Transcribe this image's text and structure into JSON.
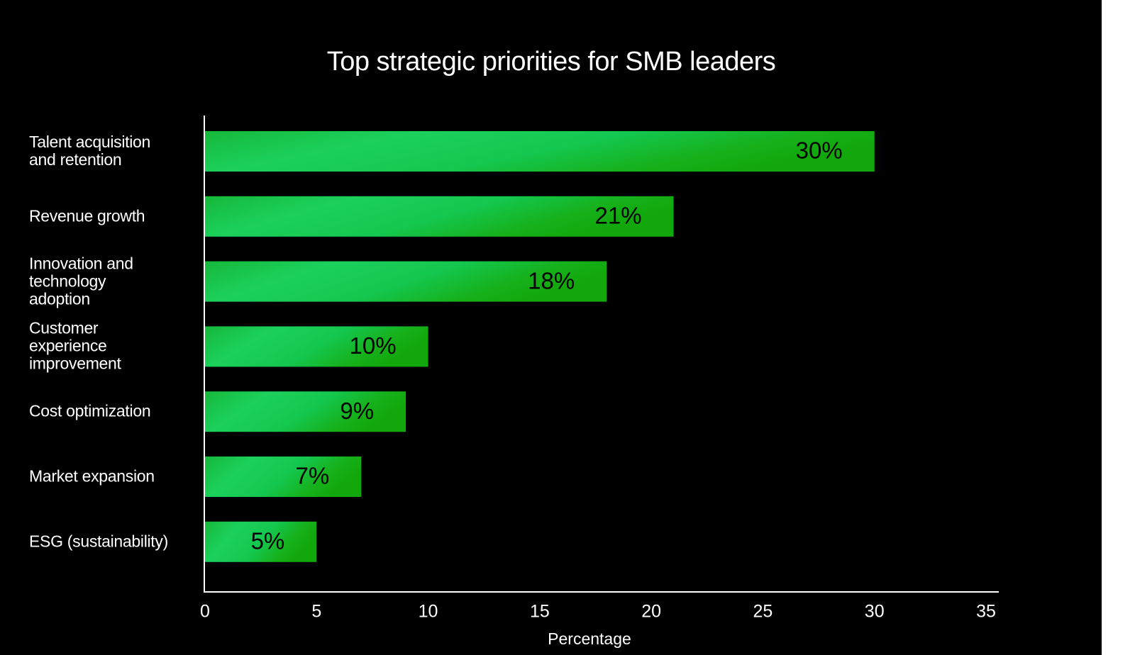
{
  "chart_data": {
    "type": "bar",
    "title": "Top strategic priorities for SMB leaders",
    "categories": [
      "Talent acquisition\nand retention",
      "Revenue growth",
      "Innovation and\ntechnology\nadoption",
      "Customer\nexperience\nimprovement",
      "Cost optimization",
      "Market expansion",
      "ESG (sustainability)"
    ],
    "values": [
      30,
      21,
      18,
      10,
      9,
      7,
      5
    ],
    "value_labels": [
      "30%",
      "21%",
      "18%",
      "10%",
      "9%",
      "7%",
      "5%"
    ],
    "color": "#19c95a",
    "xlabel": "Percentage",
    "xlim": [
      0,
      35
    ],
    "xticks": [
      0,
      5,
      10,
      15,
      20,
      25,
      30,
      35
    ]
  }
}
